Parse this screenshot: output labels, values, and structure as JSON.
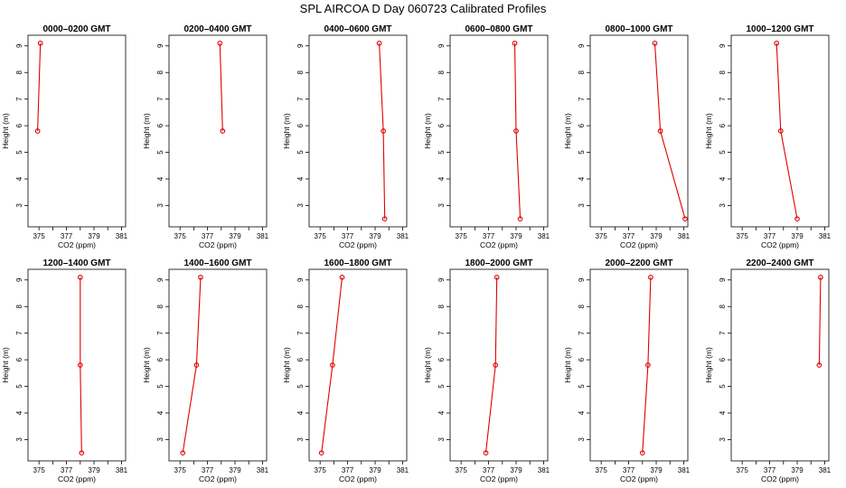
{
  "title": "SPL AIRCOA D  Day 060723  Calibrated Profiles",
  "chart_data": {
    "type": "line",
    "title": "SPL AIRCOA D  Day 060723  Calibrated Profiles",
    "xlabel": "CO2 (ppm)",
    "ylabel": "Height (m)",
    "xlim": [
      374.2,
      381.3
    ],
    "ylim": [
      2.2,
      9.4
    ],
    "xticks": [
      "375",
      "377",
      "379",
      "381"
    ],
    "yticks": [
      "3",
      "4",
      "5",
      "6",
      "7",
      "8",
      "9"
    ],
    "line_color": "#e00000",
    "panels": [
      {
        "name": "0000–0200 GMT",
        "points": [
          {
            "x": 375.1,
            "y": 9.1
          },
          {
            "x": 374.9,
            "y": 5.8
          }
        ]
      },
      {
        "name": "0200–0400 GMT",
        "points": [
          {
            "x": 377.9,
            "y": 9.1
          },
          {
            "x": 378.1,
            "y": 5.8
          }
        ]
      },
      {
        "name": "0400–0600 GMT",
        "points": [
          {
            "x": 379.3,
            "y": 9.1
          },
          {
            "x": 379.6,
            "y": 5.8
          },
          {
            "x": 379.7,
            "y": 2.5
          }
        ]
      },
      {
        "name": "0600–0800 GMT",
        "points": [
          {
            "x": 378.9,
            "y": 9.1
          },
          {
            "x": 379.0,
            "y": 5.8
          },
          {
            "x": 379.3,
            "y": 2.5
          }
        ]
      },
      {
        "name": "0800–1000 GMT",
        "points": [
          {
            "x": 378.9,
            "y": 9.1
          },
          {
            "x": 379.3,
            "y": 5.8
          },
          {
            "x": 381.1,
            "y": 2.5
          }
        ]
      },
      {
        "name": "1000–1200 GMT",
        "points": [
          {
            "x": 377.5,
            "y": 9.1
          },
          {
            "x": 377.8,
            "y": 5.8
          },
          {
            "x": 379.0,
            "y": 2.5
          }
        ]
      },
      {
        "name": "1200–1400 GMT",
        "points": [
          {
            "x": 378.0,
            "y": 9.1
          },
          {
            "x": 378.0,
            "y": 5.8
          },
          {
            "x": 378.1,
            "y": 2.5
          }
        ]
      },
      {
        "name": "1400–1600 GMT",
        "points": [
          {
            "x": 376.5,
            "y": 9.1
          },
          {
            "x": 376.2,
            "y": 5.8
          },
          {
            "x": 375.2,
            "y": 2.5
          }
        ]
      },
      {
        "name": "1600–1800 GMT",
        "points": [
          {
            "x": 376.6,
            "y": 9.1
          },
          {
            "x": 375.9,
            "y": 5.8
          },
          {
            "x": 375.1,
            "y": 2.5
          }
        ]
      },
      {
        "name": "1800–2000 GMT",
        "points": [
          {
            "x": 377.6,
            "y": 9.1
          },
          {
            "x": 377.5,
            "y": 5.8
          },
          {
            "x": 376.8,
            "y": 2.5
          }
        ]
      },
      {
        "name": "2000–2200 GMT",
        "points": [
          {
            "x": 378.6,
            "y": 9.1
          },
          {
            "x": 378.4,
            "y": 5.8
          },
          {
            "x": 378.0,
            "y": 2.5
          }
        ]
      },
      {
        "name": "2200–2400 GMT",
        "points": [
          {
            "x": 380.7,
            "y": 9.1
          },
          {
            "x": 380.6,
            "y": 5.8
          }
        ]
      }
    ]
  }
}
